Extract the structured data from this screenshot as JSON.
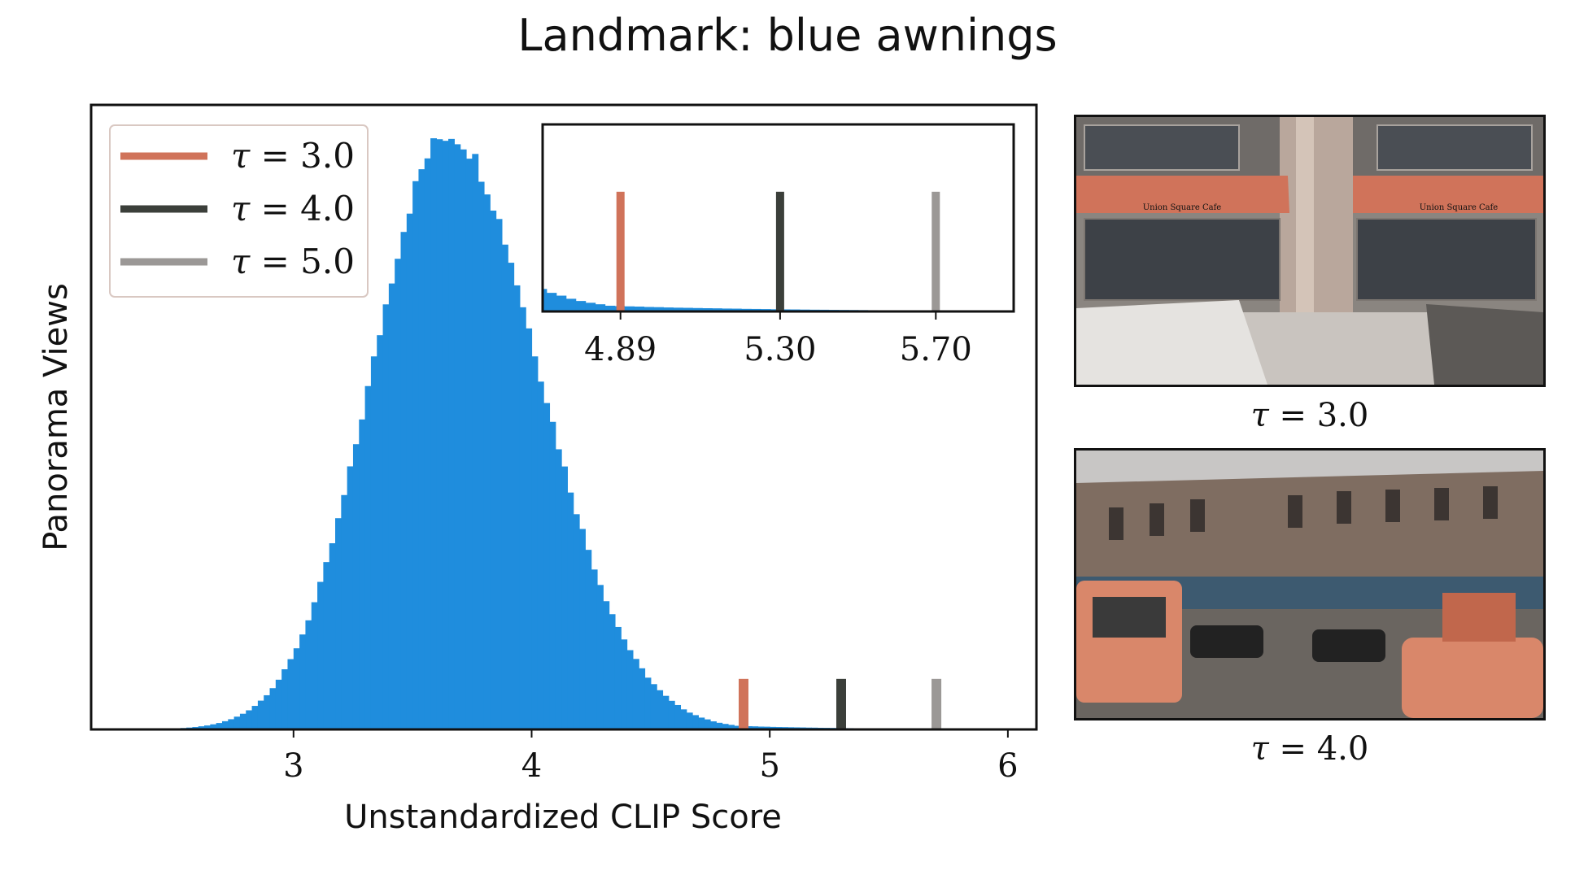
{
  "title": "Landmark: blue awnings",
  "chart_data": [
    {
      "type": "bar",
      "subtype": "histogram",
      "xlabel": "Unstandardized CLIP Score",
      "ylabel": "Panorama Views",
      "xlim": [
        2.15,
        6.12
      ],
      "ylim": [
        0,
        1.05
      ],
      "xticks": [
        3,
        4,
        5,
        6
      ],
      "xtick_labels": [
        "3",
        "4",
        "5",
        "6"
      ],
      "bin_width": 0.025,
      "bar_color": "#1f8ddd",
      "histogram": {
        "mode": 3.65,
        "peak_height": 1.0,
        "left_sigma": 0.32,
        "right_sigma": 0.38,
        "tail_scale": 0.45,
        "range": [
          2.2,
          6.0
        ]
      },
      "thresholds": [
        {
          "label": "τ = 3.0",
          "tau": "3.0",
          "x": 4.89,
          "color": "#d0735a"
        },
        {
          "label": "τ = 4.0",
          "tau": "4.0",
          "x": 5.3,
          "color": "#3b3f3a"
        },
        {
          "label": "τ = 5.0",
          "tau": "5.0",
          "x": 5.7,
          "color": "#9b9896"
        }
      ],
      "legend_position": "top-left",
      "grid": false
    },
    {
      "type": "bar",
      "subtype": "histogram-inset",
      "xlim": [
        4.69,
        5.9
      ],
      "ylim": [
        0,
        0.2
      ],
      "xticks": [
        4.89,
        5.3,
        5.7
      ],
      "xtick_labels": [
        "4.89",
        "5.30",
        "5.70"
      ],
      "position": "top-right"
    }
  ],
  "photos": [
    {
      "caption_tau": "3.0",
      "description": "Union Square Cafe storefront"
    },
    {
      "caption_tau": "4.0",
      "description": "street corner with taxis"
    }
  ],
  "photo_sign": "Union Square Cafe"
}
